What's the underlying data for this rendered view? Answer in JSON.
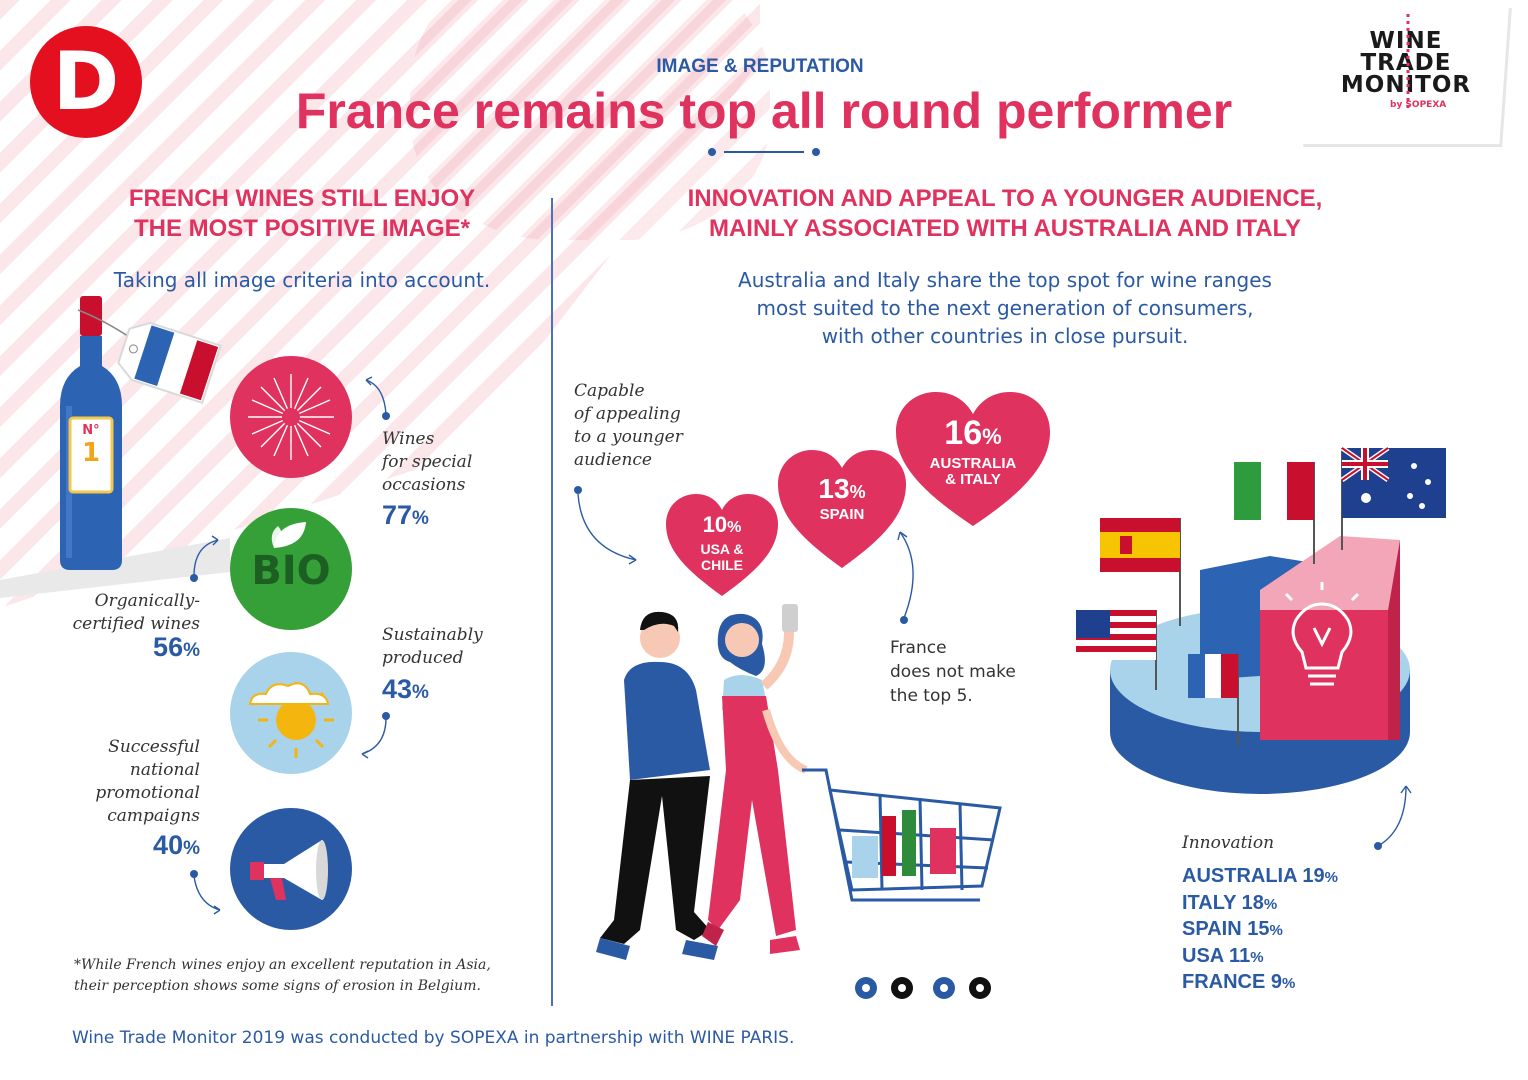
{
  "header": {
    "kicker": "IMAGE & REPUTATION",
    "title": "France remains top all round performer",
    "logo_letter": "D",
    "brand_line1": "WINE",
    "brand_line2": "TRADE",
    "brand_line3": "MONITOR",
    "brand_by": "by SOPEXA"
  },
  "left": {
    "heading_line1": "FRENCH WINES STILL ENJOY",
    "heading_line2": "THE MOST POSITIVE IMAGE*",
    "subheading": "Taking all image criteria into account.",
    "bottle_label_no": "N°",
    "bottle_label_rank": "1",
    "bio_text": "BIO",
    "items": [
      {
        "label_lines": [
          "Wines",
          "for special",
          "occasions"
        ],
        "value": "77",
        "unit": "%",
        "value_num": 77
      },
      {
        "label_lines": [
          "Organically-",
          "certified wines"
        ],
        "value": "56",
        "unit": "%",
        "value_num": 56
      },
      {
        "label_lines": [
          "Sustainably",
          "produced"
        ],
        "value": "43",
        "unit": "%",
        "value_num": 43
      },
      {
        "label_lines": [
          "Successful",
          "national",
          "promotional",
          "campaigns"
        ],
        "value": "40",
        "unit": "%",
        "value_num": 40
      }
    ],
    "footnote_line1": "*While French wines enjoy an excellent reputation in Asia,",
    "footnote_line2": "their perception shows some signs of erosion in Belgium."
  },
  "right": {
    "heading_line1": "INNOVATION AND APPEAL TO A YOUNGER AUDIENCE,",
    "heading_line2": "MAINLY ASSOCIATED WITH AUSTRALIA AND ITALY",
    "sub_line1": "Australia and Italy share the top spot for wine ranges",
    "sub_line2": "most suited to the next generation of consumers,",
    "sub_line3": "with other countries in close pursuit.",
    "capable_lines": [
      "Capable",
      "of appealing",
      "to a younger",
      "audience"
    ],
    "hearts": [
      {
        "value": "10",
        "unit": "%",
        "label_line1": "USA &",
        "label_line2": "CHILE",
        "value_num": 10
      },
      {
        "value": "13",
        "unit": "%",
        "label_line1": "SPAIN",
        "label_line2": "",
        "value_num": 13
      },
      {
        "value": "16",
        "unit": "%",
        "label_line1": "AUSTRALIA",
        "label_line2": "& ITALY",
        "value_num": 16
      }
    ],
    "france_note_lines": [
      "France",
      "does not make",
      "the top 5."
    ],
    "innovation_title": "Innovation",
    "innovation": [
      {
        "country": "AUSTRALIA",
        "value": "19",
        "unit": "%",
        "value_num": 19
      },
      {
        "country": "ITALY",
        "value": "18",
        "unit": "%",
        "value_num": 18
      },
      {
        "country": "SPAIN",
        "value": "15",
        "unit": "%",
        "value_num": 15
      },
      {
        "country": "USA",
        "value": "11",
        "unit": "%",
        "value_num": 11
      },
      {
        "country": "FRANCE",
        "value": "9",
        "unit": "%",
        "value_num": 9
      }
    ]
  },
  "footer": {
    "credit": "Wine Trade Monitor 2019 was conducted by SOPEXA in partnership with WINE PARIS."
  },
  "colors": {
    "pink": "#e0325e",
    "blue": "#2b5aa5",
    "light_blue": "#a9d3ea",
    "green": "#34a037",
    "red_logo": "#e4101f"
  }
}
